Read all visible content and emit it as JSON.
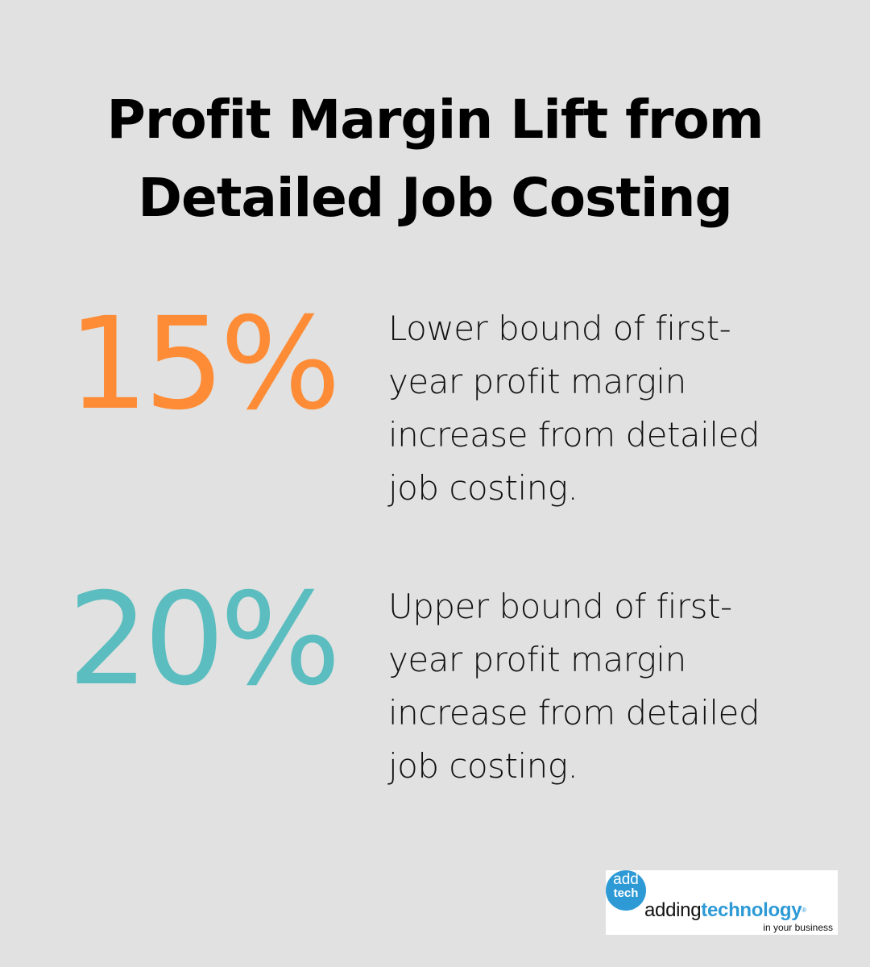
{
  "title": {
    "line1": "Profit Margin Lift from",
    "line2": "Detailed Job Costing"
  },
  "stats": [
    {
      "value": "15%",
      "color": "#fe8c36",
      "description": "Lower bound of first-year profit margin increase from detailed job costing.",
      "lines": [
        "Lower bound of first-",
        "year profit margin",
        "increase from detailed",
        "job costing."
      ]
    },
    {
      "value": "20%",
      "color": "#5bbdbf",
      "description": "Upper bound of first-year profit margin increase from detailed job costing.",
      "lines": [
        "Upper bound of first-",
        "year profit margin",
        "increase from detailed",
        "job costing."
      ]
    }
  ],
  "logo": {
    "badge_top": "add",
    "badge_bottom": "tech",
    "brand_regular": "adding",
    "brand_bold": "technology",
    "registered": "®",
    "tagline": "in your business",
    "color": "#2d9ad6"
  },
  "colors": {
    "background": "#e0e1e0",
    "text": "#000000"
  }
}
